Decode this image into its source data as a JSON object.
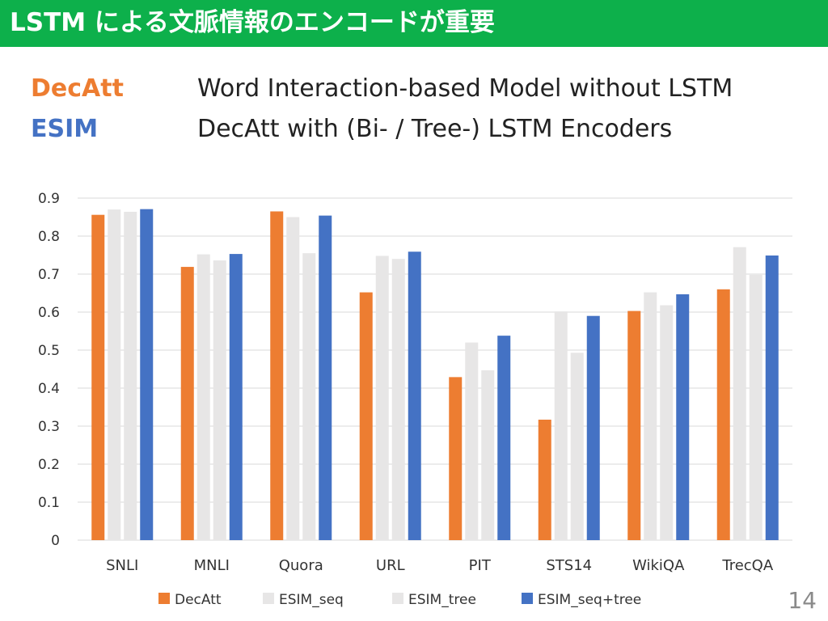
{
  "slide": {
    "title": "LSTM による文脈情報のエンコードが重要",
    "title_bar_color": "#0db04b",
    "page_number": "14"
  },
  "definitions": [
    {
      "term": "DecAtt",
      "description": "Word Interaction-based Model without LSTM",
      "color": "#ed7d31"
    },
    {
      "term": "ESIM",
      "description": "DecAtt with (Bi- / Tree-) LSTM Encoders",
      "color": "#4472c4"
    }
  ],
  "chart_data": {
    "type": "bar",
    "categories": [
      "SNLI",
      "MNLI",
      "Quora",
      "URL",
      "PIT",
      "STS14",
      "WikiQA",
      "TrecQA"
    ],
    "series": [
      {
        "name": "DecAtt",
        "color": "#ed7d31",
        "values": [
          0.856,
          0.719,
          0.865,
          0.652,
          0.429,
          0.317,
          0.603,
          0.66
        ]
      },
      {
        "name": "ESIM_seq",
        "color": "#e7e6e6",
        "values": [
          0.87,
          0.752,
          0.85,
          0.748,
          0.52,
          0.602,
          0.652,
          0.771
        ]
      },
      {
        "name": "ESIM_tree",
        "color": "#e7e6e6",
        "values": [
          0.864,
          0.736,
          0.755,
          0.74,
          0.447,
          0.493,
          0.618,
          0.698
        ]
      },
      {
        "name": "ESIM_seq+tree",
        "color": "#4472c4",
        "values": [
          0.871,
          0.753,
          0.854,
          0.759,
          0.538,
          0.59,
          0.647,
          0.749
        ]
      }
    ],
    "ylim": [
      0,
      0.9
    ],
    "yticks": [
      "0",
      "0.1",
      "0.2",
      "0.3",
      "0.4",
      "0.5",
      "0.6",
      "0.7",
      "0.8",
      "0.9"
    ],
    "grid": true,
    "legend_position": "bottom",
    "title": "",
    "xlabel": "",
    "ylabel": ""
  }
}
